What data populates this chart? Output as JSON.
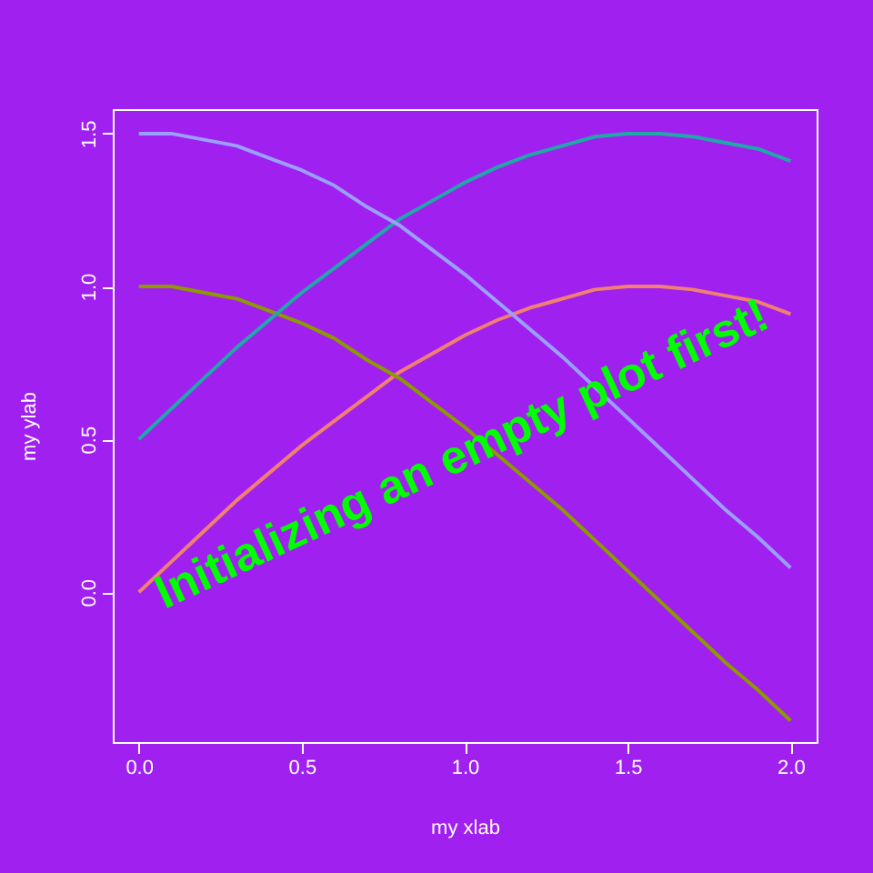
{
  "chart_data": {
    "type": "line",
    "xlabel": "my xlab",
    "ylabel": "my ylab",
    "x": [
      0,
      0.1,
      0.2,
      0.3,
      0.4,
      0.5,
      0.6,
      0.7,
      0.8,
      0.9,
      1.0,
      1.1,
      1.2,
      1.3,
      1.4,
      1.5,
      1.6,
      1.7,
      1.8,
      1.9,
      2.0
    ],
    "series": [
      {
        "color": "#f08070",
        "values": [
          0,
          0.1,
          0.2,
          0.3,
          0.39,
          0.48,
          0.56,
          0.64,
          0.72,
          0.78,
          0.84,
          0.89,
          0.93,
          0.96,
          0.99,
          1.0,
          1.0,
          0.99,
          0.97,
          0.95,
          0.91
        ]
      },
      {
        "color": "#8c9a00",
        "values": [
          1.0,
          1.0,
          0.98,
          0.96,
          0.92,
          0.88,
          0.83,
          0.76,
          0.7,
          0.62,
          0.54,
          0.45,
          0.36,
          0.27,
          0.17,
          0.07,
          -0.03,
          -0.13,
          -0.23,
          -0.32,
          -0.42
        ]
      },
      {
        "color": "#20a8a8",
        "values": [
          0.5,
          0.6,
          0.7,
          0.8,
          0.89,
          0.98,
          1.06,
          1.14,
          1.22,
          1.28,
          1.34,
          1.39,
          1.43,
          1.46,
          1.49,
          1.5,
          1.5,
          1.49,
          1.47,
          1.45,
          1.41
        ]
      },
      {
        "color": "#9aa0ff",
        "values": [
          1.5,
          1.5,
          1.48,
          1.46,
          1.42,
          1.38,
          1.33,
          1.26,
          1.2,
          1.12,
          1.04,
          0.95,
          0.86,
          0.77,
          0.67,
          0.57,
          0.47,
          0.37,
          0.27,
          0.18,
          0.08
        ]
      }
    ],
    "xlim": [
      -0.08,
      2.08
    ],
    "ylim": [
      -0.49,
      1.58
    ],
    "xticks": [
      {
        "value": 0,
        "label": "0.0"
      },
      {
        "value": 0.5,
        "label": "0.5"
      },
      {
        "value": 1,
        "label": "1.0"
      },
      {
        "value": 1.5,
        "label": "1.5"
      },
      {
        "value": 2,
        "label": "2.0"
      }
    ],
    "yticks": [
      {
        "value": 0,
        "label": "0.0"
      },
      {
        "value": 0.5,
        "label": "0.5"
      },
      {
        "value": 1,
        "label": "1.0"
      },
      {
        "value": 1.5,
        "label": "1.5"
      }
    ],
    "grid": false,
    "legend": false,
    "marker": "none",
    "line_style": "solid",
    "annotations": [
      "Initializing an empty plot first!"
    ]
  }
}
